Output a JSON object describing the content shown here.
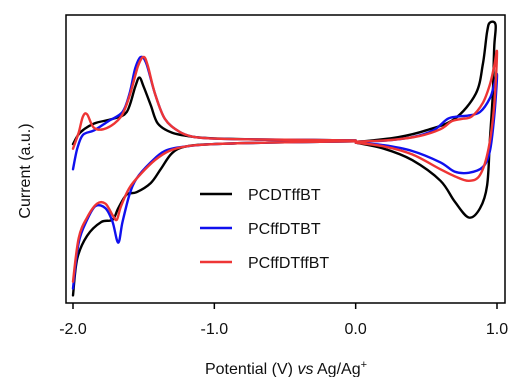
{
  "chart_data": {
    "type": "line",
    "xlabel_parts": [
      "Potential (V) ",
      "vs",
      " Ag/Ag",
      "+"
    ],
    "ylabel": "Current (a.u.)",
    "xlim": [
      -2.0,
      1.0
    ],
    "x_reversed": true,
    "y_ticks_shown": false,
    "grid": false,
    "legend_position": "center-right",
    "x_ticks": [
      {
        "value": -2.0,
        "label": "-2.0"
      },
      {
        "value": -1.0,
        "label": "-1.0"
      },
      {
        "value": 0.0,
        "label": "0.0"
      },
      {
        "value": 1.0,
        "label": "1.0"
      }
    ],
    "series": [
      {
        "name": "PCDTffBT",
        "color": "#000000",
        "segments": [
          [
            [
              0.0,
              0.96
            ],
            [
              -0.3,
              0.98
            ],
            [
              -0.7,
              1.0
            ],
            [
              -1.0,
              1.05
            ],
            [
              -1.15,
              1.12
            ],
            [
              -1.3,
              1.3
            ],
            [
              -1.4,
              1.7
            ],
            [
              -1.45,
              2.5
            ],
            [
              -1.5,
              3.3
            ],
            [
              -1.53,
              3.7
            ],
            [
              -1.56,
              3.3
            ],
            [
              -1.62,
              2.2
            ],
            [
              -1.72,
              1.9
            ],
            [
              -1.85,
              1.7
            ],
            [
              -1.95,
              1.3
            ],
            [
              -2.0,
              0.8
            ]
          ],
          [
            [
              -2.0,
              -5.8
            ],
            [
              -1.97,
              -4.2
            ],
            [
              -1.9,
              -3.2
            ],
            [
              -1.8,
              -2.6
            ],
            [
              -1.72,
              -2.5
            ],
            [
              -1.68,
              -2.0
            ],
            [
              -1.62,
              -1.4
            ],
            [
              -1.55,
              -1.3
            ],
            [
              -1.45,
              -0.9
            ],
            [
              -1.38,
              -0.3
            ],
            [
              -1.3,
              0.4
            ],
            [
              -1.2,
              0.7
            ],
            [
              -1.0,
              0.8
            ],
            [
              -0.5,
              0.88
            ],
            [
              0.0,
              0.92
            ]
          ],
          [
            [
              0.0,
              0.86
            ],
            [
              0.2,
              0.6
            ],
            [
              0.4,
              0.1
            ],
            [
              0.6,
              -0.8
            ],
            [
              0.7,
              -1.7
            ],
            [
              0.8,
              -2.4
            ],
            [
              0.88,
              -2.0
            ],
            [
              0.93,
              -1.0
            ],
            [
              0.95,
              1.0
            ],
            [
              0.97,
              3.0
            ],
            [
              0.98,
              5.0
            ],
            [
              0.99,
              6.0
            ],
            [
              0.95,
              6.1
            ],
            [
              0.93,
              5.7
            ],
            [
              0.9,
              4.3
            ],
            [
              0.85,
              3.0
            ],
            [
              0.7,
              1.9
            ],
            [
              0.5,
              1.4
            ],
            [
              0.3,
              1.1
            ],
            [
              0.1,
              0.95
            ],
            [
              0.0,
              0.9
            ]
          ]
        ]
      },
      {
        "name": "PCffDTBT",
        "color": "#1010ee",
        "segments": [
          [
            [
              0.0,
              0.96
            ],
            [
              -0.3,
              0.98
            ],
            [
              -0.7,
              1.0
            ],
            [
              -1.0,
              1.04
            ],
            [
              -1.15,
              1.12
            ],
            [
              -1.25,
              1.35
            ],
            [
              -1.35,
              1.9
            ],
            [
              -1.42,
              3.0
            ],
            [
              -1.48,
              4.3
            ],
            [
              -1.52,
              4.6
            ],
            [
              -1.56,
              4.1
            ],
            [
              -1.6,
              3.0
            ],
            [
              -1.65,
              2.2
            ],
            [
              -1.75,
              1.8
            ],
            [
              -1.85,
              1.4
            ],
            [
              -1.93,
              1.2
            ],
            [
              -1.97,
              0.6
            ],
            [
              -2.0,
              -0.3
            ]
          ],
          [
            [
              -2.0,
              -5.5
            ],
            [
              -1.96,
              -3.5
            ],
            [
              -1.9,
              -2.5
            ],
            [
              -1.84,
              -1.9
            ],
            [
              -1.77,
              -2.0
            ],
            [
              -1.72,
              -2.6
            ],
            [
              -1.68,
              -3.5
            ],
            [
              -1.65,
              -2.6
            ],
            [
              -1.6,
              -1.4
            ],
            [
              -1.55,
              -0.7
            ],
            [
              -1.45,
              0.0
            ],
            [
              -1.35,
              0.5
            ],
            [
              -1.2,
              0.7
            ],
            [
              -1.0,
              0.8
            ],
            [
              -0.5,
              0.88
            ],
            [
              0.0,
              0.92
            ]
          ],
          [
            [
              0.0,
              0.86
            ],
            [
              0.2,
              0.75
            ],
            [
              0.4,
              0.5
            ],
            [
              0.6,
              0.0
            ],
            [
              0.7,
              -0.4
            ],
            [
              0.8,
              -0.45
            ],
            [
              0.9,
              -0.2
            ],
            [
              0.95,
              0.5
            ],
            [
              0.98,
              2.0
            ],
            [
              1.0,
              3.8
            ],
            [
              0.98,
              3.4
            ],
            [
              0.95,
              2.8
            ],
            [
              0.88,
              2.2
            ],
            [
              0.8,
              2.05
            ],
            [
              0.72,
              2.0
            ],
            [
              0.65,
              1.9
            ],
            [
              0.55,
              1.4
            ],
            [
              0.4,
              1.1
            ],
            [
              0.2,
              0.95
            ],
            [
              0.0,
              0.9
            ]
          ]
        ]
      },
      {
        "name": "PCffDTffBT",
        "color": "#ee3535",
        "segments": [
          [
            [
              0.0,
              0.96
            ],
            [
              -0.3,
              0.98
            ],
            [
              -0.7,
              1.0
            ],
            [
              -1.0,
              1.04
            ],
            [
              -1.15,
              1.12
            ],
            [
              -1.25,
              1.35
            ],
            [
              -1.35,
              1.9
            ],
            [
              -1.42,
              3.0
            ],
            [
              -1.47,
              4.2
            ],
            [
              -1.5,
              4.6
            ],
            [
              -1.54,
              4.2
            ],
            [
              -1.6,
              2.9
            ],
            [
              -1.66,
              2.0
            ],
            [
              -1.76,
              1.5
            ],
            [
              -1.85,
              1.5
            ],
            [
              -1.9,
              2.1
            ],
            [
              -1.93,
              2.0
            ],
            [
              -1.96,
              1.3
            ],
            [
              -2.0,
              0.6
            ]
          ],
          [
            [
              -2.0,
              -5.2
            ],
            [
              -1.96,
              -3.3
            ],
            [
              -1.9,
              -2.4
            ],
            [
              -1.83,
              -1.8
            ],
            [
              -1.77,
              -1.8
            ],
            [
              -1.72,
              -2.3
            ],
            [
              -1.69,
              -2.5
            ],
            [
              -1.66,
              -1.9
            ],
            [
              -1.6,
              -1.1
            ],
            [
              -1.52,
              -0.5
            ],
            [
              -1.42,
              0.1
            ],
            [
              -1.32,
              0.5
            ],
            [
              -1.2,
              0.7
            ],
            [
              -1.0,
              0.8
            ],
            [
              -0.5,
              0.88
            ],
            [
              0.0,
              0.92
            ]
          ],
          [
            [
              0.0,
              0.86
            ],
            [
              0.2,
              0.7
            ],
            [
              0.4,
              0.35
            ],
            [
              0.6,
              -0.3
            ],
            [
              0.7,
              -0.6
            ],
            [
              0.8,
              -0.8
            ],
            [
              0.88,
              -0.55
            ],
            [
              0.94,
              0.6
            ],
            [
              0.98,
              2.5
            ],
            [
              1.0,
              4.8
            ],
            [
              0.98,
              4.2
            ],
            [
              0.95,
              3.4
            ],
            [
              0.9,
              2.6
            ],
            [
              0.82,
              2.0
            ],
            [
              0.75,
              1.9
            ],
            [
              0.68,
              1.8
            ],
            [
              0.6,
              1.45
            ],
            [
              0.45,
              1.15
            ],
            [
              0.25,
              0.98
            ],
            [
              0.0,
              0.9
            ]
          ]
        ]
      }
    ]
  }
}
